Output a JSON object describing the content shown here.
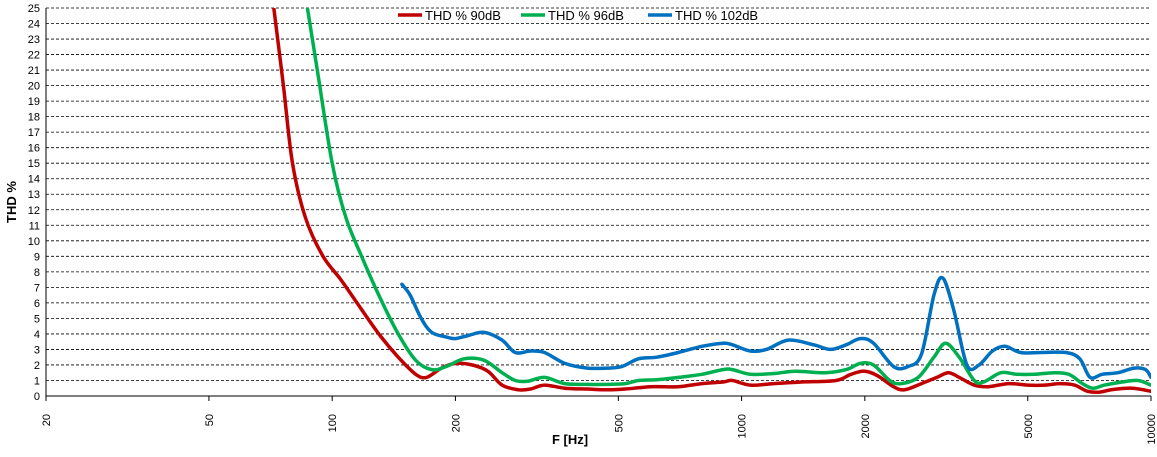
{
  "chart_data": {
    "type": "line",
    "xlabel": "F [Hz]",
    "ylabel": "THD %",
    "xscale": "log",
    "xlim": [
      20,
      10000
    ],
    "ylim": [
      0,
      25
    ],
    "x_ticks": [
      "20",
      "50",
      "100",
      "200",
      "500",
      "1000",
      "2000",
      "5000",
      "10000"
    ],
    "y_ticks": [
      "0",
      "1",
      "2",
      "3",
      "4",
      "5",
      "6",
      "7",
      "8",
      "9",
      "10",
      "11",
      "12",
      "13",
      "14",
      "15",
      "16",
      "17",
      "18",
      "19",
      "20",
      "21",
      "22",
      "23",
      "24",
      "25"
    ],
    "grid": "horizontal dashed",
    "legend_position": "top-center",
    "series": [
      {
        "name": "THD % 90dB",
        "color": "#c00000",
        "points": [
          [
            72,
            25
          ],
          [
            76,
            20
          ],
          [
            80,
            15
          ],
          [
            86,
            11.5
          ],
          [
            95,
            9
          ],
          [
            105,
            7.5
          ],
          [
            115,
            6
          ],
          [
            130,
            4
          ],
          [
            145,
            2.5
          ],
          [
            160,
            1.4
          ],
          [
            170,
            1.2
          ],
          [
            185,
            1.8
          ],
          [
            200,
            2.1
          ],
          [
            220,
            2
          ],
          [
            240,
            1.6
          ],
          [
            260,
            0.7
          ],
          [
            285,
            0.4
          ],
          [
            305,
            0.45
          ],
          [
            330,
            0.7
          ],
          [
            370,
            0.5
          ],
          [
            420,
            0.45
          ],
          [
            470,
            0.4
          ],
          [
            520,
            0.45
          ],
          [
            600,
            0.6
          ],
          [
            700,
            0.6
          ],
          [
            800,
            0.8
          ],
          [
            900,
            0.9
          ],
          [
            950,
            1.0
          ],
          [
            1050,
            0.7
          ],
          [
            1200,
            0.8
          ],
          [
            1400,
            0.9
          ],
          [
            1700,
            1.0
          ],
          [
            1850,
            1.4
          ],
          [
            2000,
            1.6
          ],
          [
            2150,
            1.3
          ],
          [
            2350,
            0.6
          ],
          [
            2500,
            0.4
          ],
          [
            2750,
            0.8
          ],
          [
            3000,
            1.2
          ],
          [
            3200,
            1.5
          ],
          [
            3400,
            1.2
          ],
          [
            3700,
            0.7
          ],
          [
            4000,
            0.6
          ],
          [
            4500,
            0.8
          ],
          [
            5000,
            0.7
          ],
          [
            5500,
            0.7
          ],
          [
            6000,
            0.8
          ],
          [
            6500,
            0.7
          ],
          [
            7000,
            0.3
          ],
          [
            7500,
            0.25
          ],
          [
            8000,
            0.4
          ],
          [
            9000,
            0.5
          ],
          [
            10000,
            0.3
          ]
        ]
      },
      {
        "name": "THD % 96dB",
        "color": "#00b050",
        "points": [
          [
            87,
            25
          ],
          [
            92,
            21
          ],
          [
            100,
            15
          ],
          [
            108,
            11.5
          ],
          [
            118,
            9
          ],
          [
            130,
            6.5
          ],
          [
            145,
            4
          ],
          [
            160,
            2.3
          ],
          [
            175,
            1.7
          ],
          [
            190,
            1.9
          ],
          [
            210,
            2.4
          ],
          [
            235,
            2.3
          ],
          [
            260,
            1.5
          ],
          [
            280,
            1
          ],
          [
            300,
            0.95
          ],
          [
            330,
            1.2
          ],
          [
            370,
            0.8
          ],
          [
            420,
            0.75
          ],
          [
            470,
            0.75
          ],
          [
            520,
            0.8
          ],
          [
            560,
            1.0
          ],
          [
            620,
            1.05
          ],
          [
            700,
            1.2
          ],
          [
            800,
            1.4
          ],
          [
            900,
            1.7
          ],
          [
            950,
            1.7
          ],
          [
            1050,
            1.4
          ],
          [
            1200,
            1.45
          ],
          [
            1350,
            1.6
          ],
          [
            1600,
            1.5
          ],
          [
            1800,
            1.7
          ],
          [
            1950,
            2.1
          ],
          [
            2100,
            2.0
          ],
          [
            2300,
            1.0
          ],
          [
            2450,
            0.8
          ],
          [
            2700,
            1.2
          ],
          [
            2950,
            2.5
          ],
          [
            3150,
            3.4
          ],
          [
            3400,
            2.5
          ],
          [
            3700,
            1.0
          ],
          [
            3900,
            0.9
          ],
          [
            4300,
            1.5
          ],
          [
            4700,
            1.4
          ],
          [
            5200,
            1.4
          ],
          [
            5800,
            1.5
          ],
          [
            6300,
            1.4
          ],
          [
            6800,
            0.8
          ],
          [
            7200,
            0.5
          ],
          [
            7700,
            0.7
          ],
          [
            8500,
            0.9
          ],
          [
            9300,
            1.0
          ],
          [
            10000,
            0.7
          ]
        ]
      },
      {
        "name": "THD % 102dB",
        "color": "#0070c0",
        "points": [
          [
            148,
            7.2
          ],
          [
            155,
            6.5
          ],
          [
            165,
            5
          ],
          [
            175,
            4.1
          ],
          [
            190,
            3.8
          ],
          [
            200,
            3.7
          ],
          [
            215,
            3.9
          ],
          [
            235,
            4.1
          ],
          [
            260,
            3.6
          ],
          [
            280,
            2.8
          ],
          [
            305,
            2.9
          ],
          [
            330,
            2.8
          ],
          [
            370,
            2.1
          ],
          [
            420,
            1.8
          ],
          [
            470,
            1.8
          ],
          [
            510,
            1.9
          ],
          [
            560,
            2.4
          ],
          [
            620,
            2.5
          ],
          [
            700,
            2.8
          ],
          [
            800,
            3.2
          ],
          [
            900,
            3.4
          ],
          [
            950,
            3.3
          ],
          [
            1050,
            2.9
          ],
          [
            1150,
            3.0
          ],
          [
            1300,
            3.6
          ],
          [
            1500,
            3.3
          ],
          [
            1650,
            3.0
          ],
          [
            1800,
            3.3
          ],
          [
            1950,
            3.7
          ],
          [
            2100,
            3.4
          ],
          [
            2350,
            1.9
          ],
          [
            2550,
            1.9
          ],
          [
            2750,
            2.7
          ],
          [
            2950,
            6.5
          ],
          [
            3100,
            7.6
          ],
          [
            3300,
            5.5
          ],
          [
            3550,
            2.0
          ],
          [
            3800,
            2.0
          ],
          [
            4100,
            2.9
          ],
          [
            4400,
            3.2
          ],
          [
            4800,
            2.8
          ],
          [
            5400,
            2.8
          ],
          [
            6200,
            2.8
          ],
          [
            6700,
            2.4
          ],
          [
            7100,
            1.2
          ],
          [
            7600,
            1.4
          ],
          [
            8300,
            1.5
          ],
          [
            9100,
            1.8
          ],
          [
            9700,
            1.7
          ],
          [
            10000,
            1.2
          ]
        ]
      }
    ]
  }
}
